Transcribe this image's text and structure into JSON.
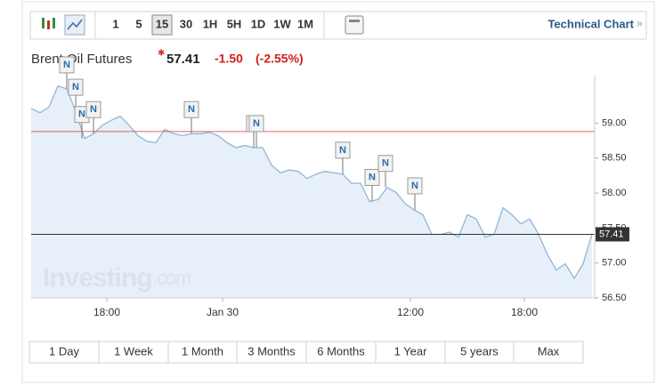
{
  "toolbar": {
    "intervals": [
      "1",
      "5",
      "15",
      "30",
      "1H",
      "5H",
      "1D",
      "1W",
      "1M"
    ],
    "selected_interval_index": 2,
    "link": "Technical Chart",
    "link_arrow": "»"
  },
  "quote": {
    "name": "Brent Oil Futures",
    "price": "57.41",
    "change": "-1.50",
    "change_percent": "(-2.55%)"
  },
  "chart_data": {
    "type": "line",
    "color": "#8fb6dc",
    "fill": "#e3edf7",
    "values": [
      59.21,
      59.15,
      59.23,
      59.53,
      59.49,
      59.17,
      58.78,
      58.85,
      58.97,
      59.04,
      59.1,
      58.97,
      58.82,
      58.74,
      58.72,
      58.91,
      58.85,
      58.82,
      58.85,
      58.85,
      58.87,
      58.82,
      58.72,
      58.65,
      58.68,
      58.65,
      58.65,
      58.4,
      58.29,
      58.33,
      58.31,
      58.21,
      58.27,
      58.31,
      58.29,
      58.27,
      58.14,
      58.14,
      57.88,
      57.91,
      58.08,
      58.01,
      57.85,
      57.76,
      57.69,
      57.41,
      57.41,
      57.44,
      57.37,
      57.69,
      57.63,
      57.37,
      57.41,
      57.79,
      57.69,
      57.56,
      57.63,
      57.41,
      57.12,
      56.9,
      56.99,
      56.78,
      56.99,
      57.41
    ],
    "xlim": [
      0,
      63.3
    ],
    "xticks": [
      {
        "value": 8.5,
        "label": "18:00"
      },
      {
        "value": 21.5,
        "label": "Jan 30"
      },
      {
        "value": 42.6,
        "label": "12:00"
      },
      {
        "value": 55.4,
        "label": "18:00"
      }
    ],
    "ylim": [
      56.5,
      59.68
    ],
    "yticks": [
      {
        "value": 56.5,
        "label": "56.50"
      },
      {
        "value": 57,
        "label": "57.00"
      },
      {
        "value": 57.5,
        "label": "57.50"
      },
      {
        "value": 58,
        "label": "58.00"
      },
      {
        "value": 58.5,
        "label": "58.50"
      },
      {
        "value": 59,
        "label": "59.00"
      }
    ],
    "hlines": [
      {
        "value": 58.88,
        "color": "#e06060"
      },
      {
        "value": 57.41,
        "color": "#333333"
      }
    ],
    "last_label": "57.41",
    "annotations": [
      {
        "x": 4,
        "label": "N"
      },
      {
        "x": 5,
        "label": "N"
      },
      {
        "x": 5.7,
        "label": "N"
      },
      {
        "x": 7,
        "label": "N"
      },
      {
        "x": 18,
        "label": "N"
      },
      {
        "x": 25,
        "label": "N"
      },
      {
        "x": 25.3,
        "label": "N"
      },
      {
        "x": 35,
        "label": "N"
      },
      {
        "x": 38.3,
        "label": "N"
      },
      {
        "x": 39.8,
        "label": "N"
      },
      {
        "x": 43.1,
        "label": "N"
      }
    ],
    "watermark": [
      "Investing",
      ".com"
    ]
  },
  "ranges": [
    "1 Day",
    "1 Week",
    "1 Month",
    "3 Months",
    "6 Months",
    "1 Year",
    "5 years",
    "Max"
  ]
}
